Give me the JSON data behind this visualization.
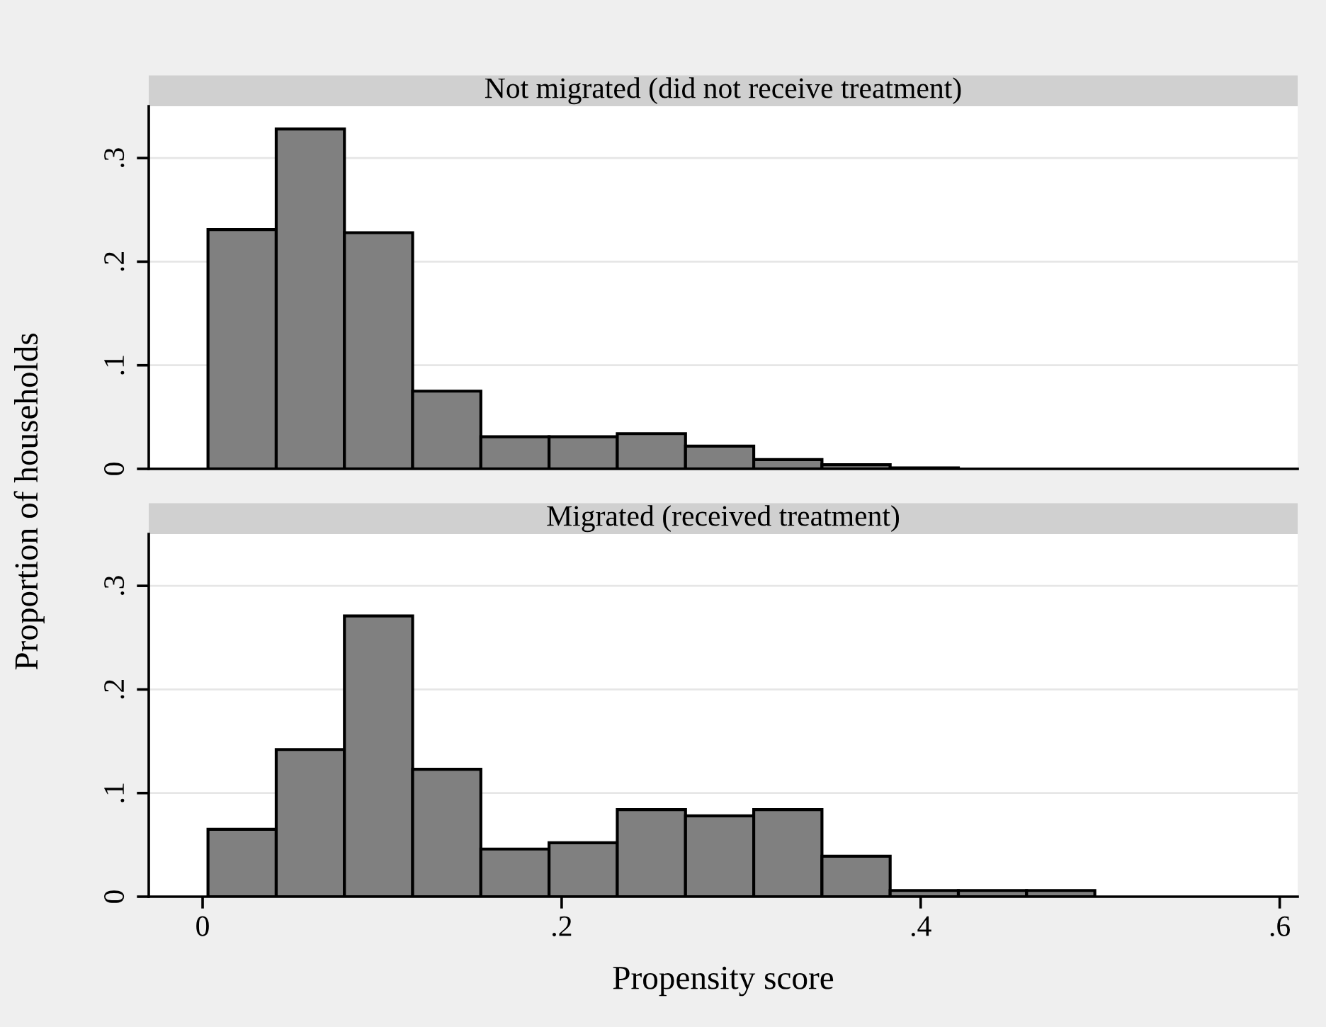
{
  "chart_data": [
    {
      "type": "histogram",
      "title": "Not migrated (did not receive treatment)",
      "ylabel": "Proportion of households",
      "bins": [
        0.003,
        0.041,
        0.079,
        0.117,
        0.155,
        0.193,
        0.231,
        0.269,
        0.307,
        0.345,
        0.383,
        0.421
      ],
      "values": [
        0.231,
        0.328,
        0.228,
        0.075,
        0.031,
        0.031,
        0.034,
        0.022,
        0.009,
        0.004,
        0.001
      ],
      "color": "#808080",
      "xlim": [
        -0.03,
        0.61
      ],
      "ylim": [
        0,
        0.35
      ],
      "yticks": [
        {
          "value": 0,
          "label": "0"
        },
        {
          "value": 0.1,
          "label": ".1"
        },
        {
          "value": 0.2,
          "label": ".2"
        },
        {
          "value": 0.3,
          "label": ".3"
        }
      ],
      "grid": "y",
      "tick_labels": "y"
    },
    {
      "type": "histogram",
      "title": "Migrated (received treatment)",
      "xlabel": "Propensity score",
      "bins": [
        0.003,
        0.041,
        0.079,
        0.117,
        0.155,
        0.193,
        0.231,
        0.269,
        0.307,
        0.345,
        0.383,
        0.421,
        0.459,
        0.497
      ],
      "values": [
        0.065,
        0.142,
        0.271,
        0.123,
        0.046,
        0.052,
        0.084,
        0.078,
        0.084,
        0.039,
        0.006,
        0.006,
        0.006
      ],
      "color": "#808080",
      "xlim": [
        -0.03,
        0.61
      ],
      "ylim": [
        0,
        0.35
      ],
      "xticks": [
        {
          "value": 0,
          "label": "0"
        },
        {
          "value": 0.2,
          "label": ".2"
        },
        {
          "value": 0.4,
          "label": ".4"
        },
        {
          "value": 0.6,
          "label": ".6"
        }
      ],
      "yticks": [
        {
          "value": 0,
          "label": "0"
        },
        {
          "value": 0.1,
          "label": ".1"
        },
        {
          "value": 0.2,
          "label": ".2"
        },
        {
          "value": 0.3,
          "label": ".3"
        }
      ],
      "grid": "y"
    }
  ]
}
